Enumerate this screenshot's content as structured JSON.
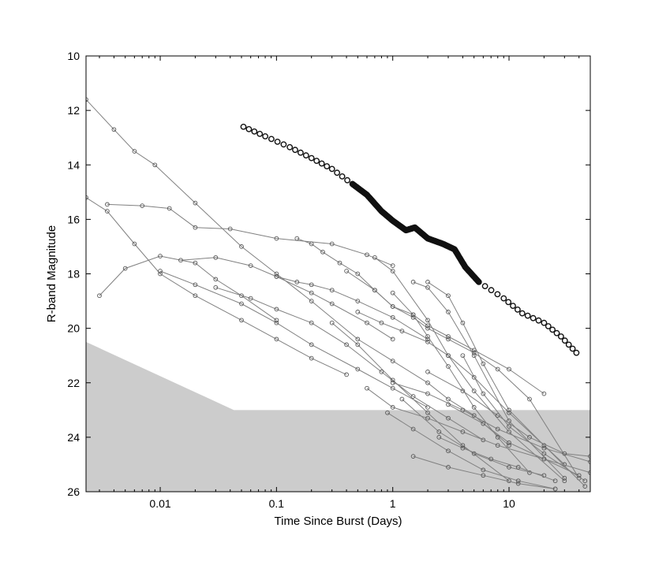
{
  "chart_data": {
    "type": "scatter",
    "xscale": "log",
    "y_inverted": true,
    "xlabel": "Time Since Burst  (Days)",
    "ylabel": "R-band Magnitude",
    "xlim": [
      0.0023,
      50
    ],
    "ylim": [
      10,
      26
    ],
    "xticks": [
      0.01,
      0.1,
      1,
      10
    ],
    "xtick_labels": [
      "0.01",
      "0.1",
      "1",
      "10"
    ],
    "yticks": [
      10,
      12,
      14,
      16,
      18,
      20,
      22,
      24,
      26
    ],
    "ytick_labels": [
      "10",
      "12",
      "14",
      "16",
      "18",
      "20",
      "22",
      "24",
      "26"
    ],
    "grid": false,
    "colors": {
      "curve": "#808080",
      "marker": "#555555",
      "bright_marker": "#111111",
      "limit_region": "#cccccc",
      "axes": "#000000"
    },
    "limit_region": [
      [
        0.0023,
        20.5
      ],
      [
        0.043,
        23.0
      ],
      [
        50,
        23.0
      ]
    ],
    "bright_burst": [
      [
        0.052,
        12.6
      ],
      [
        0.08,
        12.95
      ],
      [
        0.13,
        13.35
      ],
      [
        0.2,
        13.75
      ],
      [
        0.3,
        14.15
      ],
      [
        0.45,
        14.7
      ],
      [
        0.6,
        15.1
      ],
      [
        0.8,
        15.7
      ],
      [
        1.0,
        16.05
      ],
      [
        1.3,
        16.4
      ],
      [
        1.55,
        16.3
      ],
      [
        2.0,
        16.7
      ],
      [
        2.7,
        16.9
      ],
      [
        3.4,
        17.1
      ],
      [
        4.2,
        17.75
      ],
      [
        5.5,
        18.3
      ],
      [
        9.0,
        18.9
      ],
      [
        13.0,
        19.45
      ],
      [
        20.0,
        19.8
      ],
      [
        28.0,
        20.3
      ],
      [
        38.0,
        20.9
      ]
    ],
    "series": [
      {
        "x": [
          0.0023,
          0.004,
          0.006,
          0.009,
          0.02,
          0.05,
          0.1,
          0.2,
          0.5,
          1.0,
          2.0,
          3.0,
          5.0,
          10.0
        ],
        "y": [
          11.6,
          12.7,
          13.5,
          14.0,
          15.4,
          17.0,
          18.0,
          19.0,
          20.4,
          21.2,
          22.0,
          22.6,
          23.2,
          24.3
        ]
      },
      {
        "x": [
          0.0023,
          0.0035,
          0.006,
          0.01,
          0.02,
          0.05,
          0.1,
          0.2,
          0.4
        ],
        "y": [
          15.2,
          15.7,
          16.9,
          18.0,
          18.8,
          19.7,
          20.4,
          21.1,
          21.7
        ]
      },
      {
        "x": [
          0.003,
          0.005,
          0.01,
          0.02,
          0.03,
          0.05,
          0.1
        ],
        "y": [
          18.8,
          17.8,
          17.35,
          17.6,
          18.2,
          18.8,
          19.7
        ]
      },
      {
        "x": [
          0.0035,
          0.007,
          0.012,
          0.02,
          0.04,
          0.1,
          0.3,
          0.6,
          1.0
        ],
        "y": [
          15.45,
          15.5,
          15.6,
          16.3,
          16.35,
          16.7,
          16.9,
          17.3,
          17.7
        ]
      },
      {
        "x": [
          0.01,
          0.02,
          0.05,
          0.1,
          0.2,
          0.5,
          1.0,
          2.0
        ],
        "y": [
          17.9,
          18.4,
          19.1,
          19.8,
          20.6,
          21.5,
          22.2,
          22.9
        ]
      },
      {
        "x": [
          0.015,
          0.03,
          0.06,
          0.1,
          0.2,
          0.3,
          0.6,
          1.0
        ],
        "y": [
          17.5,
          17.4,
          17.7,
          18.1,
          18.7,
          19.1,
          19.8,
          20.4
        ]
      },
      {
        "x": [
          0.03,
          0.06,
          0.1,
          0.2,
          0.4,
          0.8,
          1.5,
          3.0,
          6.0
        ],
        "y": [
          18.5,
          18.9,
          19.3,
          19.8,
          20.6,
          21.6,
          22.5,
          23.3,
          24.1
        ]
      },
      {
        "x": [
          0.1,
          0.15,
          0.2,
          0.3,
          0.5,
          1.0,
          2.0
        ],
        "y": [
          18.1,
          18.3,
          18.4,
          18.6,
          19.0,
          19.6,
          20.4
        ]
      },
      {
        "x": [
          0.15,
          0.2,
          0.25,
          0.35,
          0.5,
          0.7,
          1.0,
          1.5,
          2.0,
          3.0,
          5.0,
          8.0,
          15.0,
          40.0
        ],
        "y": [
          16.7,
          16.9,
          17.2,
          17.6,
          18.0,
          18.6,
          19.2,
          19.6,
          20.0,
          20.4,
          20.9,
          21.5,
          22.6,
          25.5
        ]
      },
      {
        "x": [
          0.4,
          0.7,
          1.0,
          1.5,
          2.0,
          3.0,
          5.0,
          10.0,
          20.0
        ],
        "y": [
          17.9,
          18.6,
          19.2,
          19.5,
          19.9,
          20.3,
          20.8,
          21.5,
          22.4
        ]
      },
      {
        "x": [
          0.5,
          0.8,
          1.2,
          2.0,
          3.0,
          5.0,
          10.0,
          30.0
        ],
        "y": [
          19.4,
          19.8,
          20.1,
          20.5,
          21.0,
          21.8,
          23.1,
          25.0
        ]
      },
      {
        "x": [
          0.7,
          1.0,
          2.0,
          3.0,
          5.0,
          10.0,
          30.0
        ],
        "y": [
          17.4,
          17.9,
          19.7,
          21.0,
          22.3,
          23.8,
          25.6
        ]
      },
      {
        "x": [
          1.0,
          1.5,
          2.0,
          3.0,
          5.0,
          8.0,
          15.0
        ],
        "y": [
          18.7,
          19.5,
          20.3,
          21.4,
          22.9,
          24.0,
          25.3
        ]
      },
      {
        "x": [
          1.5,
          2.0,
          3.0,
          5.0,
          10.0,
          30.0
        ],
        "y": [
          18.3,
          18.5,
          19.4,
          21.0,
          23.4,
          25.5
        ]
      },
      {
        "x": [
          2.0,
          3.0,
          4.0,
          6.0,
          10.0,
          20.0,
          45.0
        ],
        "y": [
          18.3,
          18.8,
          19.8,
          21.3,
          23.0,
          24.3,
          25.8
        ]
      },
      {
        "x": [
          0.3,
          0.5,
          1.0,
          2.0,
          4.0,
          10.0
        ],
        "y": [
          19.8,
          20.6,
          21.9,
          23.1,
          24.3,
          25.6
        ]
      },
      {
        "x": [
          0.6,
          1.0,
          2.0,
          4.0,
          8.0,
          20.0,
          50.0
        ],
        "y": [
          22.2,
          22.9,
          23.3,
          23.8,
          24.3,
          24.8,
          25.3
        ]
      },
      {
        "x": [
          1.0,
          2.0,
          4.0,
          8.0,
          20.0,
          50.0
        ],
        "y": [
          22.0,
          22.4,
          23.0,
          23.7,
          24.4,
          24.9
        ]
      },
      {
        "x": [
          0.9,
          1.5,
          3.0,
          6.0,
          12.0,
          25.0
        ],
        "y": [
          23.1,
          23.7,
          24.5,
          25.2,
          25.6,
          25.9
        ]
      },
      {
        "x": [
          2.0,
          4.0,
          8.0,
          15.0,
          30.0,
          50.0
        ],
        "y": [
          21.6,
          22.3,
          23.2,
          24.0,
          24.6,
          24.7
        ]
      },
      {
        "x": [
          1.5,
          3.0,
          6.0,
          12.0,
          25.0
        ],
        "y": [
          24.7,
          25.1,
          25.4,
          25.7,
          25.9
        ]
      },
      {
        "x": [
          3.0,
          6.0,
          10.0,
          20.0,
          40.0
        ],
        "y": [
          22.8,
          23.5,
          24.2,
          24.8,
          25.4
        ]
      },
      {
        "x": [
          1.2,
          2.5,
          5.0,
          10.0,
          20.0
        ],
        "y": [
          22.6,
          23.8,
          24.6,
          25.1,
          25.4
        ]
      },
      {
        "x": [
          4.0,
          6.0,
          10.0,
          20.0,
          45.0
        ],
        "y": [
          21.0,
          22.4,
          23.6,
          24.6,
          25.6
        ]
      },
      {
        "x": [
          2.5,
          4.0,
          7.0,
          12.0,
          25.0
        ],
        "y": [
          24.0,
          24.4,
          24.8,
          25.1,
          25.6
        ]
      }
    ]
  }
}
